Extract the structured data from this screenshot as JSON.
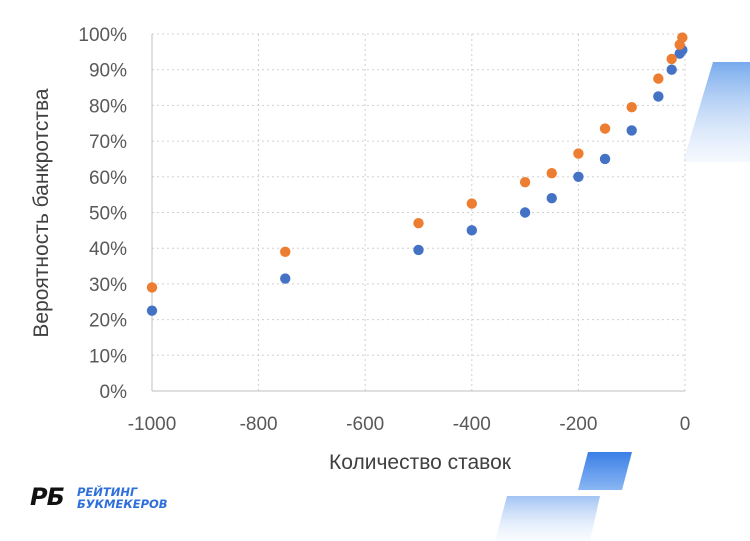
{
  "chart_data": {
    "type": "scatter",
    "title": "",
    "xlabel": "Количество ставок",
    "ylabel": "Вероятность банкротства",
    "xlim": [
      -1000,
      0
    ],
    "ylim": [
      0,
      100
    ],
    "x_ticks": [
      "-1000",
      "-800",
      "-600",
      "-400",
      "-200",
      "0"
    ],
    "y_ticks": [
      "0%",
      "10%",
      "20%",
      "30%",
      "40%",
      "50%",
      "60%",
      "70%",
      "80%",
      "90%",
      "100%"
    ],
    "grid": true,
    "legend": "none",
    "series": [
      {
        "color": "#4472c4",
        "points": [
          {
            "x": -1000,
            "y": 22.5
          },
          {
            "x": -750,
            "y": 31.5
          },
          {
            "x": -500,
            "y": 39.5
          },
          {
            "x": -400,
            "y": 45
          },
          {
            "x": -300,
            "y": 50
          },
          {
            "x": -250,
            "y": 54
          },
          {
            "x": -200,
            "y": 60
          },
          {
            "x": -150,
            "y": 65
          },
          {
            "x": -100,
            "y": 73
          },
          {
            "x": -50,
            "y": 82.5
          },
          {
            "x": -25,
            "y": 90
          },
          {
            "x": -10,
            "y": 94.5
          },
          {
            "x": -5,
            "y": 95.5
          }
        ]
      },
      {
        "color": "#ed7d31",
        "points": [
          {
            "x": -1000,
            "y": 29
          },
          {
            "x": -750,
            "y": 39
          },
          {
            "x": -500,
            "y": 47
          },
          {
            "x": -400,
            "y": 52.5
          },
          {
            "x": -300,
            "y": 58.5
          },
          {
            "x": -250,
            "y": 61
          },
          {
            "x": -200,
            "y": 66.5
          },
          {
            "x": -150,
            "y": 73.5
          },
          {
            "x": -100,
            "y": 79.5
          },
          {
            "x": -50,
            "y": 87.5
          },
          {
            "x": -25,
            "y": 93
          },
          {
            "x": -10,
            "y": 97
          },
          {
            "x": -5,
            "y": 99
          }
        ]
      }
    ]
  },
  "logo": {
    "mark": "РБ",
    "line1": "РЕЙТИНГ",
    "line2": "БУКМЕКЕРОВ",
    "color": "#2f6fdb"
  }
}
